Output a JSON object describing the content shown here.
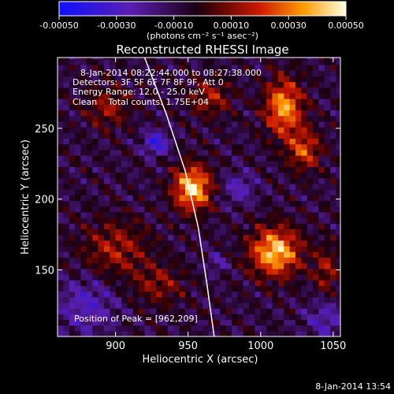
{
  "chart_data": {
    "type": "heatmap",
    "title": "Reconstructed RHESSI Image",
    "xlabel": "Heliocentric X (arcsec)",
    "ylabel": "Heliocentric Y (arcsec)",
    "xlim": [
      860,
      1055
    ],
    "ylim": [
      103,
      300
    ],
    "x_ticks": [
      900,
      950,
      1000,
      1050
    ],
    "y_ticks": [
      150,
      200,
      250
    ],
    "colorbar": {
      "min": -0.0005,
      "max": 0.0005,
      "tick_values": [
        -0.0005,
        -0.0003,
        -0.0001,
        0.0001,
        0.0003,
        0.0005
      ],
      "tick_labels": [
        "-0.00050",
        "-0.00030",
        "-0.00010",
        "0.00010",
        "0.00030",
        "0.00050"
      ],
      "unit_label": "(photons cm⁻² s⁻¹ asec⁻²)"
    },
    "annotations": {
      "time_range": "8-Jan-2014 08:22:44.000 to 08:27:38.000",
      "detectors": "Detectors: 3F 5F 6F 7F 8F 9F, Att 0",
      "energy": "Energy Range: 12.0 - 25.0 keV",
      "clean": "Clean    Total counts: 1.75E+04",
      "peak": "Position of Peak = [962,209]"
    },
    "sources": [
      {
        "x": 953,
        "y": 208,
        "sx": 9,
        "sy": 11,
        "amp": 0.00052
      },
      {
        "x": 1010,
        "y": 163,
        "sx": 12,
        "sy": 12,
        "amp": 0.0005
      },
      {
        "x": 1016,
        "y": 265,
        "sx": 9,
        "sy": 14,
        "amp": 0.00044
      },
      {
        "x": 1030,
        "y": 235,
        "sx": 8,
        "sy": 10,
        "amp": 0.0003
      },
      {
        "x": 965,
        "y": 272,
        "sx": 10,
        "sy": 9,
        "amp": 0.00022
      },
      {
        "x": 895,
        "y": 265,
        "sx": 10,
        "sy": 10,
        "amp": 0.0002
      },
      {
        "x": 900,
        "y": 165,
        "sx": 16,
        "sy": 14,
        "amp": 0.00022
      },
      {
        "x": 930,
        "y": 140,
        "sx": 12,
        "sy": 10,
        "amp": 0.00018
      },
      {
        "x": 1045,
        "y": 150,
        "sx": 6,
        "sy": 12,
        "amp": 0.0002
      },
      {
        "x": 928,
        "y": 240,
        "sx": 6,
        "sy": 6,
        "amp": -0.0003
      },
      {
        "x": 985,
        "y": 208,
        "sx": 8,
        "sy": 8,
        "amp": -0.00018
      },
      {
        "x": 880,
        "y": 125,
        "sx": 14,
        "sy": 14,
        "amp": -0.0002
      },
      {
        "x": 1045,
        "y": 115,
        "sx": 10,
        "sy": 10,
        "amp": -0.00018
      },
      {
        "x": 970,
        "y": 155,
        "sx": 5,
        "sy": 5,
        "amp": -0.00015
      }
    ],
    "limb_curve": [
      [
        920,
        300
      ],
      [
        935,
        260
      ],
      [
        948,
        220
      ],
      [
        957,
        180
      ],
      [
        963,
        140
      ],
      [
        968,
        103
      ]
    ]
  },
  "footer": {
    "date": "8-Jan-2014 13:54"
  }
}
